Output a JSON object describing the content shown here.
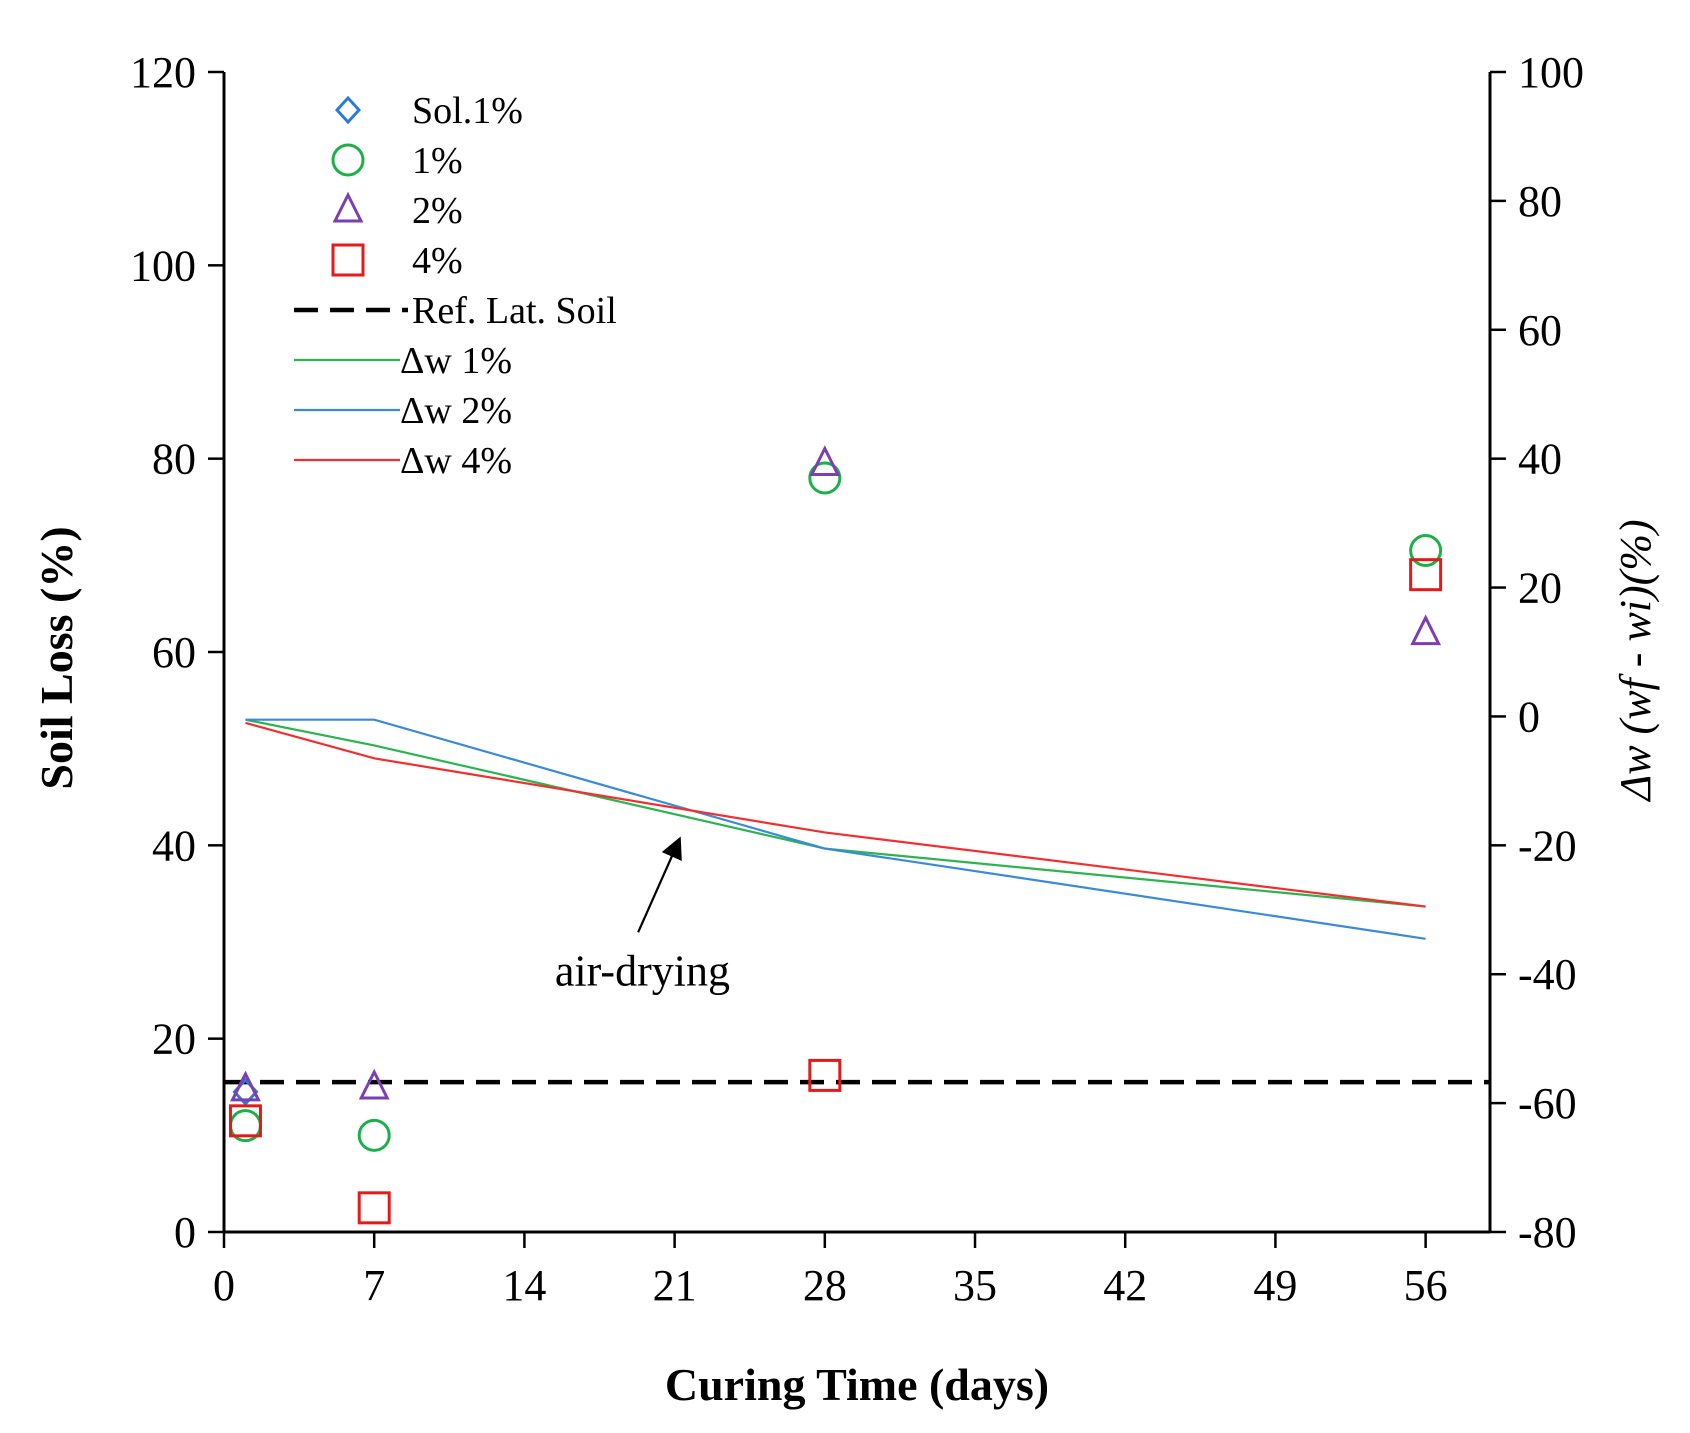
{
  "chart_data": {
    "type": "scatter",
    "xlabel": "Curing Time (days)",
    "ylabel": "Soil Loss (%)",
    "y2label": "Δw (wf - wi)(%)",
    "xlim": [
      0,
      59
    ],
    "ylim": [
      0,
      120
    ],
    "y2lim": [
      -80,
      100
    ],
    "xticks": [
      0,
      7,
      14,
      21,
      28,
      35,
      42,
      49,
      56
    ],
    "yticks": [
      0,
      20,
      40,
      60,
      80,
      100,
      120
    ],
    "y2ticks": [
      -80,
      -60,
      -40,
      -20,
      0,
      20,
      40,
      60,
      80,
      100
    ],
    "grid": false,
    "legend_position": "top-left",
    "scatter_series": [
      {
        "name": "Sol.1%",
        "marker": "diamond",
        "color": "#2b7bd6",
        "points": [
          [
            1,
            14.5
          ]
        ]
      },
      {
        "name": "1%",
        "marker": "circle",
        "color": "#1db04a",
        "points": [
          [
            1,
            11
          ],
          [
            7,
            10
          ],
          [
            28,
            78
          ],
          [
            56,
            70.5
          ]
        ]
      },
      {
        "name": "2%",
        "marker": "triangle",
        "color": "#7b3fb0",
        "points": [
          [
            1,
            14.8
          ],
          [
            7,
            15
          ],
          [
            28,
            79.5
          ],
          [
            56,
            62
          ]
        ]
      },
      {
        "name": "4%",
        "marker": "square",
        "color": "#e41a1a",
        "points": [
          [
            1,
            11.5
          ],
          [
            7,
            2.5
          ],
          [
            28,
            16.2
          ],
          [
            56,
            68
          ]
        ]
      }
    ],
    "reference_line": {
      "name": "Ref. Lat. Soil",
      "y": 15.5,
      "color": "#000000"
    },
    "line_series": [
      {
        "name": "Δw 1%",
        "color": "#2db34f",
        "axis": "right",
        "x": [
          1,
          7,
          28,
          56
        ],
        "y": [
          -0.5,
          -4.5,
          -20.5,
          -29.5
        ]
      },
      {
        "name": "Δw 2%",
        "color": "#3a8ad8",
        "axis": "right",
        "x": [
          1,
          7,
          28,
          56
        ],
        "y": [
          -0.5,
          -0.5,
          -20.5,
          -34.5
        ]
      },
      {
        "name": "Δw 4%",
        "color": "#f03030",
        "axis": "right",
        "x": [
          1,
          7,
          28,
          56
        ],
        "y": [
          -1,
          -6.5,
          -18,
          -29.5
        ]
      }
    ],
    "annotations": [
      {
        "text": "air-drying",
        "x": 19.5,
        "y_left": 25.5,
        "arrow_from": [
          19.3,
          31
        ],
        "arrow_to": [
          21.2,
          40.5
        ]
      }
    ]
  }
}
